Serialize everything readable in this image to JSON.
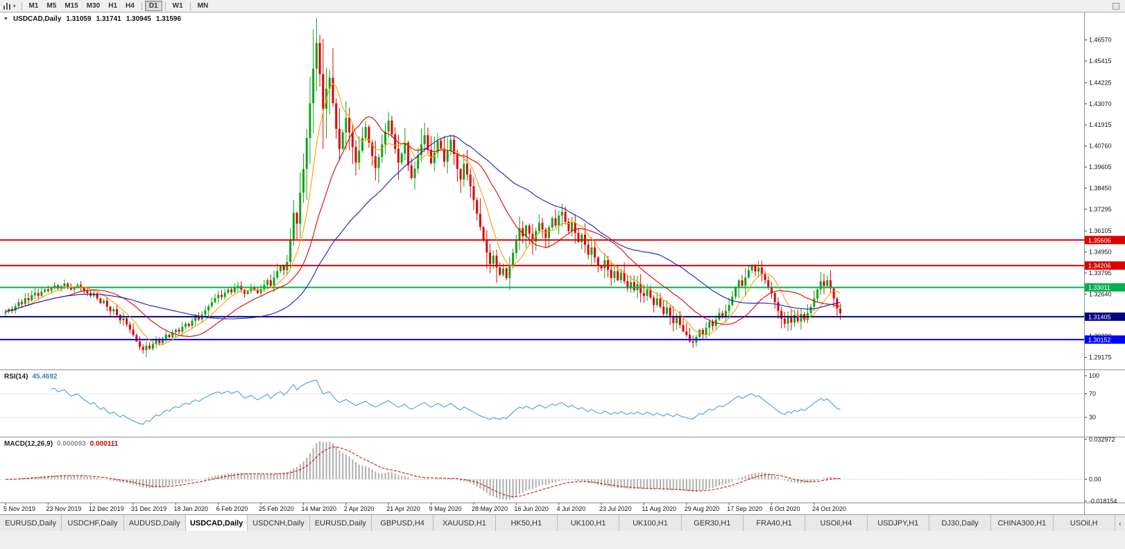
{
  "icons": {
    "collapse": "▼",
    "dropdown_caret": "▾",
    "tab_scroll": "‹"
  },
  "toolbar": {
    "groups": [
      [
        "M1",
        "M5",
        "M15",
        "M30",
        "H1",
        "H4"
      ],
      [
        "D1"
      ],
      [
        "W1"
      ],
      [
        "MN"
      ]
    ],
    "active": "D1"
  },
  "chart": {
    "symbol": "USDCAD,Daily",
    "ohlc": {
      "open": "1.31059",
      "high": "1.31741",
      "low": "1.30945",
      "close": "1.31596"
    }
  },
  "rsi_panel": {
    "name": "RSI(14)",
    "value": "45.4692"
  },
  "macd_panel": {
    "name": "MACD(12,26,9)",
    "value_main": "0.000093",
    "value_signal": "0.000111"
  },
  "tabs": {
    "active_index": 3,
    "items": [
      "EURUSD,Daily",
      "USDCHF,Daily",
      "AUDUSD,Daily",
      "USDCAD,Daily",
      "USDCNH,Daily",
      "EURUSD,Daily",
      "GBPUSD,H4",
      "XAUUSD,H1",
      "HK50,H1",
      "UK100,H1",
      "UK100,H1",
      "GER30,H1",
      "FRA40,H1",
      "USOil,H4",
      "USDJPY,H1",
      "DJ30,Daily",
      "CHINA300,H1",
      "USOil,H"
    ]
  },
  "chart_data": {
    "type": "candlestick",
    "symbol": "USDCAD",
    "timeframe": "Daily",
    "ohlc_display": [
      1.31059,
      1.31741,
      1.30945,
      1.31596
    ],
    "first_open": 1.316,
    "closes": [
      1.3168,
      1.3182,
      1.3175,
      1.3198,
      1.3221,
      1.321,
      1.3242,
      1.323,
      1.3258,
      1.327,
      1.3255,
      1.3278,
      1.329,
      1.3282,
      1.33,
      1.3312,
      1.3295,
      1.3308,
      1.3322,
      1.3305,
      1.329,
      1.3302,
      1.3315,
      1.3298,
      1.3282,
      1.327,
      1.3255,
      1.3268,
      1.324,
      1.3215,
      1.3228,
      1.3195,
      1.317,
      1.3182,
      1.315,
      1.312,
      1.3132,
      1.3098,
      1.307,
      1.304,
      1.3005,
      1.2975,
      1.2958,
      1.2982,
      1.2965,
      1.299,
      1.3012,
      1.2995,
      1.302,
      1.3042,
      1.3028,
      1.3055,
      1.307,
      1.3058,
      1.3085,
      1.3102,
      1.309,
      1.3118,
      1.314,
      1.3125,
      1.3152,
      1.3175,
      1.3198,
      1.322,
      1.3242,
      1.326,
      1.3248,
      1.3272,
      1.329,
      1.3275,
      1.3298,
      1.331,
      1.3288,
      1.3265,
      1.328,
      1.3302,
      1.3285,
      1.327,
      1.3292,
      1.3315,
      1.334,
      1.331,
      1.3355,
      1.339,
      1.342,
      1.3395,
      1.344,
      1.356,
      1.371,
      1.365,
      1.382,
      1.395,
      1.412,
      1.431,
      1.45,
      1.464,
      1.447,
      1.428,
      1.439,
      1.445,
      1.431,
      1.417,
      1.406,
      1.415,
      1.423,
      1.415,
      1.407,
      1.3985,
      1.405,
      1.412,
      1.418,
      1.4095,
      1.402,
      1.3955,
      1.4015,
      1.4085,
      1.4155,
      1.4215,
      1.414,
      1.406,
      1.3985,
      1.4035,
      1.4095,
      1.397,
      1.39,
      1.3952,
      1.4025,
      1.4085,
      1.4135,
      1.4055,
      1.3982,
      1.404,
      1.4105,
      1.4062,
      1.399,
      1.4048,
      1.411,
      1.4032,
      1.395,
      1.3892,
      1.3978,
      1.392,
      1.3855,
      1.378,
      1.3705,
      1.3632,
      1.356,
      1.3492,
      1.343,
      1.3475,
      1.341,
      1.337,
      1.3405,
      1.3352,
      1.342,
      1.349,
      1.356,
      1.3625,
      1.358,
      1.364,
      1.3595,
      1.3552,
      1.361,
      1.3655,
      1.3618,
      1.3572,
      1.363,
      1.368,
      1.364,
      1.3695,
      1.3715,
      1.366,
      1.361,
      1.3655,
      1.36,
      1.355,
      1.359,
      1.3535,
      1.348,
      1.352,
      1.3465,
      1.342,
      1.3405,
      1.345,
      1.3398,
      1.3352,
      1.339,
      1.334,
      1.3382,
      1.3335,
      1.3295,
      1.333,
      1.3285,
      1.332,
      1.327,
      1.3255,
      1.329,
      1.3245,
      1.3205,
      1.324,
      1.3195,
      1.3155,
      1.319,
      1.3145,
      1.3105,
      1.314,
      1.3095,
      1.306,
      1.304,
      1.3005,
      1.2998,
      1.303,
      1.3068,
      1.3042,
      1.308,
      1.3115,
      1.309,
      1.3125,
      1.316,
      1.3138,
      1.3172,
      1.3205,
      1.325,
      1.3298,
      1.334,
      1.331,
      1.3355,
      1.3395,
      1.342,
      1.3388,
      1.341,
      1.3375,
      1.334,
      1.3305,
      1.327,
      1.322,
      1.3172,
      1.313,
      1.3102,
      1.314,
      1.3108,
      1.3148,
      1.3115,
      1.3155,
      1.3122,
      1.316,
      1.3195,
      1.324,
      1.329,
      1.3335,
      1.3308,
      1.334,
      1.3295,
      1.324,
      1.3185,
      1.316
    ],
    "date_labels": [
      "5 Nov 2019",
      "23 Nov 2019",
      "12 Dec 2019",
      "31 Dec 2019",
      "18 Jan 2020",
      "6 Feb 2020",
      "25 Feb 2020",
      "14 Mar 2020",
      "2 Apr 2020",
      "21 Apr 2020",
      "9 May 2020",
      "28 May 2020",
      "16 Jun 2020",
      "4 Jul 2020",
      "23 Jul 2020",
      "11 Aug 2020",
      "29 Aug 2020",
      "17 Sep 2020",
      "6 Oct 2020",
      "24 Oct 2020"
    ],
    "label_step": 13,
    "price_axis_ticks": [
      "1.46570",
      "1.45415",
      "1.44225",
      "1.43070",
      "1.41915",
      "1.40760",
      "1.39605",
      "1.38450",
      "1.37295",
      "1.36105",
      "1.34950",
      "1.33795",
      "1.32640",
      "1.31485",
      "1.30330",
      "1.29175"
    ],
    "price_range": [
      1.2855,
      1.48
    ],
    "up_color": "#0FA318",
    "down_color": "#E00000",
    "overlays": [
      {
        "name": "ma-fast",
        "period": 8,
        "color": "#FF9D00"
      },
      {
        "name": "ma-mid",
        "period": 20,
        "color": "#DD0000"
      },
      {
        "name": "ma-slow",
        "period": 45,
        "color": "#1A1ABB"
      }
    ],
    "hlines": [
      {
        "price": 1.35606,
        "label": "1.35606",
        "color": "#DD0000",
        "width": 2
      },
      {
        "price": 1.34206,
        "label": "1.34206",
        "color": "#DD0000",
        "width": 2
      },
      {
        "price": 1.33011,
        "label": "1.33011",
        "color": "#00B050",
        "width": 2
      },
      {
        "price": 1.31405,
        "label": "1.31405",
        "color": "#000080",
        "width": 2
      },
      {
        "price": 1.30152,
        "label": "1.30152",
        "color": "#0000FF",
        "width": 2
      }
    ],
    "rsi": {
      "period": 14,
      "current": 45.4692,
      "levels": [
        100,
        70,
        30
      ],
      "axis_labels": [
        "100",
        "70",
        "30"
      ],
      "color": "#4A9FD8",
      "range": [
        0,
        107
      ]
    },
    "macd": {
      "fast": 12,
      "slow": 26,
      "signal": 9,
      "current": [
        9.3e-05,
        0.000111
      ],
      "axis_ticks": [
        "0.032972",
        "0.00",
        "-0.018154"
      ],
      "axis_values": [
        0.032972,
        0,
        -0.018154
      ],
      "range": [
        -0.0187,
        0.0335
      ],
      "hist_color": "#ADADAD",
      "signal_color": "#CC0000"
    }
  }
}
